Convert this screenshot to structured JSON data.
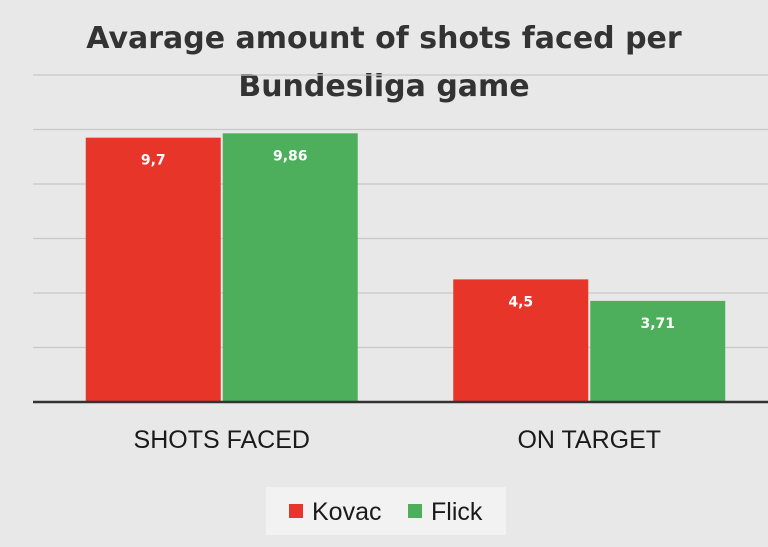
{
  "chart_data": {
    "type": "bar",
    "title_lines": [
      "Avarage amount of shots faced per",
      "Bundesliga game"
    ],
    "categories": [
      "SHOTS FACED",
      "ON TARGET"
    ],
    "series": [
      {
        "name": "Kovac",
        "values": [
          9.7,
          4.5
        ],
        "labels": [
          "9,7",
          "4,5"
        ],
        "color": "#e8352a"
      },
      {
        "name": "Flick",
        "values": [
          9.86,
          3.71
        ],
        "labels": [
          "9,86",
          "3,71"
        ],
        "color": "#4daf5c"
      }
    ],
    "ylim": [
      0,
      12
    ],
    "grid": true,
    "legend_position": "bottom",
    "background_color": "#e8e8e8",
    "gridline_color": "#c8c8c8",
    "axis_color": "#333333"
  }
}
